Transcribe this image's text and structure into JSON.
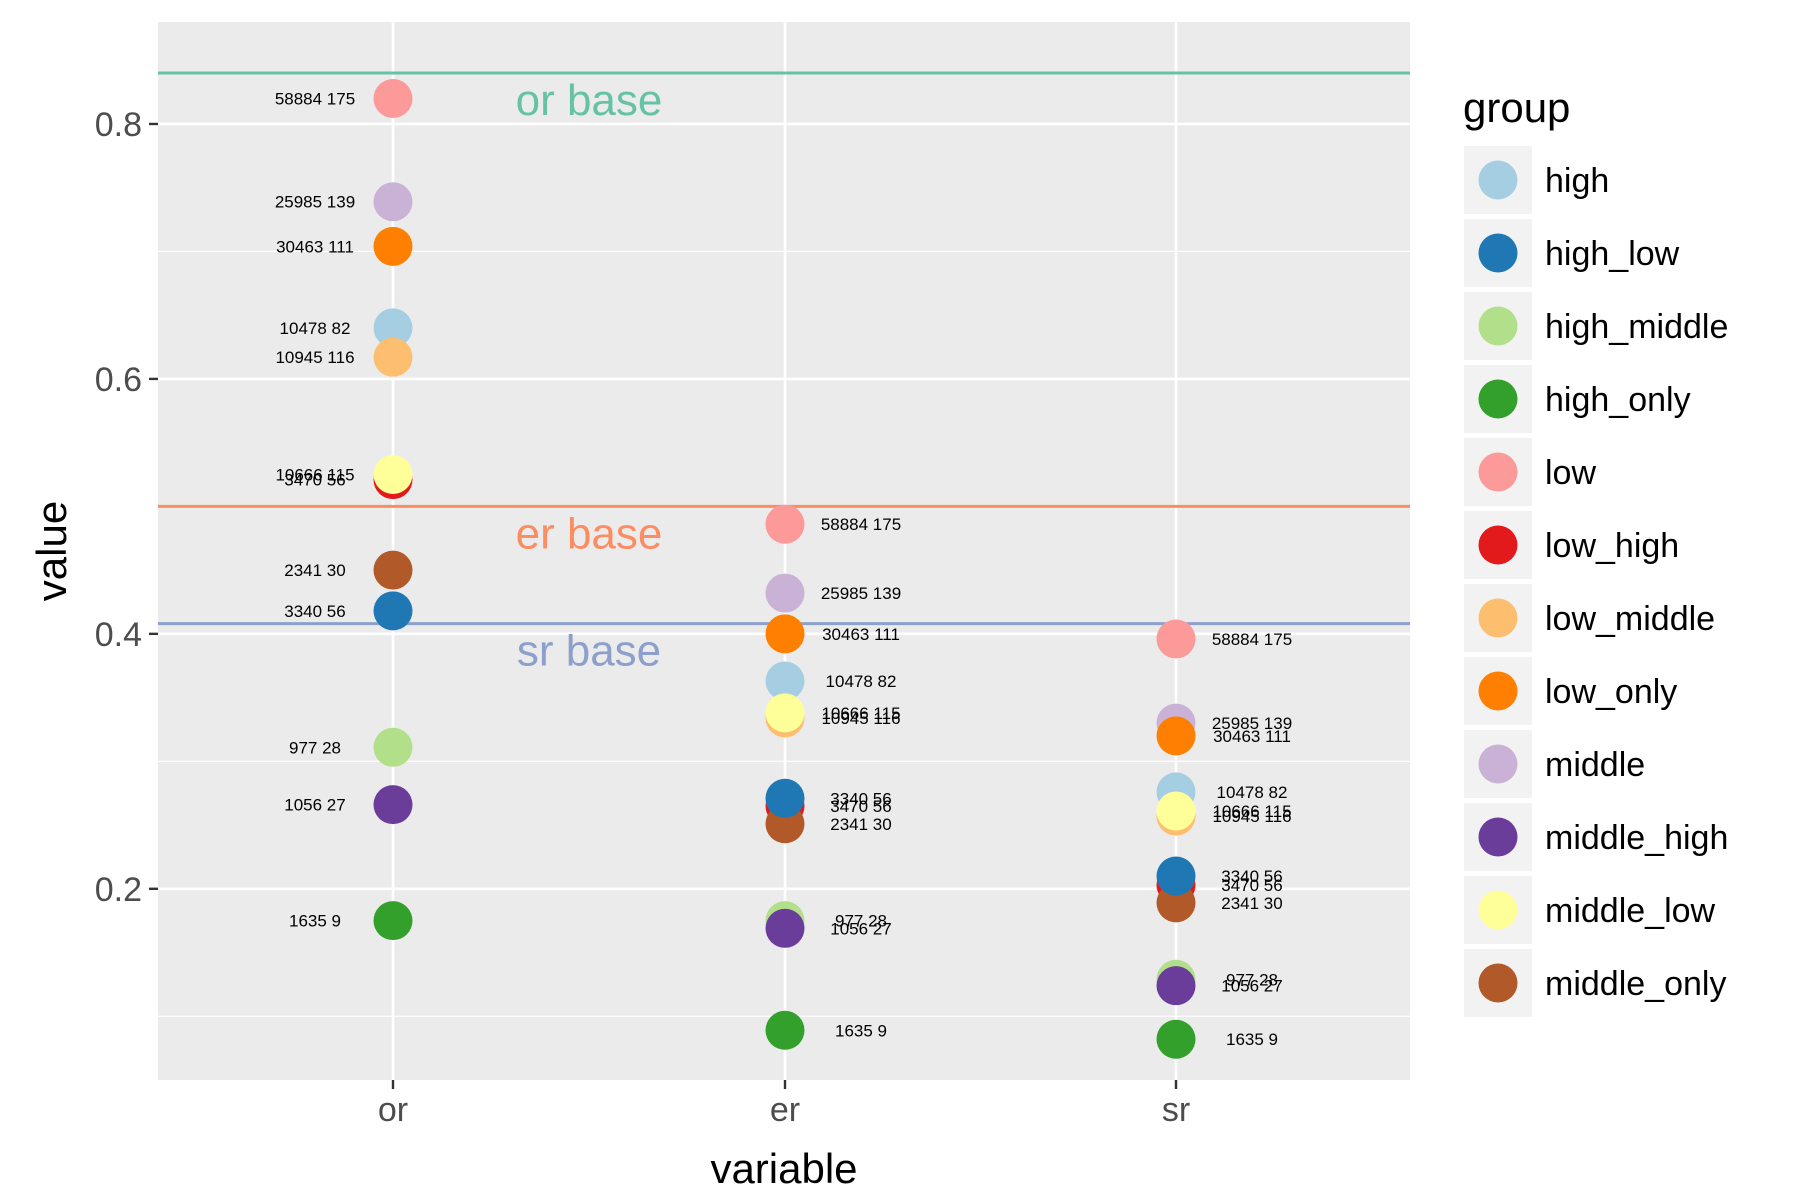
{
  "chart_data": {
    "type": "scatter",
    "xlabel": "variable",
    "ylabel": "value",
    "categories": [
      "or",
      "er",
      "sr"
    ],
    "ylim": [
      0.05,
      0.88
    ],
    "yticks": [
      0.2,
      0.4,
      0.6,
      0.8
    ],
    "ytick_labels": [
      "0.2",
      "0.4",
      "0.6",
      "0.8"
    ],
    "legend": {
      "title": "group",
      "position": "right",
      "entries": [
        {
          "name": "high",
          "color": "#A6CEE3"
        },
        {
          "name": "high_low",
          "color": "#1F78B4"
        },
        {
          "name": "high_middle",
          "color": "#B2DF8A"
        },
        {
          "name": "high_only",
          "color": "#33A02C"
        },
        {
          "name": "low",
          "color": "#FB9A99"
        },
        {
          "name": "low_high",
          "color": "#E31A1C"
        },
        {
          "name": "low_middle",
          "color": "#FDBF6F"
        },
        {
          "name": "low_only",
          "color": "#FF7F00"
        },
        {
          "name": "middle",
          "color": "#CAB2D6"
        },
        {
          "name": "middle_high",
          "color": "#6A3D9A"
        },
        {
          "name": "middle_low",
          "color": "#FFFF99"
        },
        {
          "name": "middle_only",
          "color": "#B15928"
        }
      ]
    },
    "baselines": [
      {
        "label": "or base",
        "value": 0.84,
        "color": "#66C2A5"
      },
      {
        "label": "er base",
        "value": 0.5,
        "color": "#FC8D62"
      },
      {
        "label": "sr base",
        "value": 0.408,
        "color": "#8DA0CB"
      }
    ],
    "series": [
      {
        "name": "low",
        "color": "#FB9A99",
        "label": "58884 175",
        "values": [
          0.82,
          0.486,
          0.396
        ]
      },
      {
        "name": "middle",
        "color": "#CAB2D6",
        "label": "25985 139",
        "values": [
          0.739,
          0.432,
          0.33
        ]
      },
      {
        "name": "low_only",
        "color": "#FF7F00",
        "label": "30463 111",
        "values": [
          0.704,
          0.4,
          0.32
        ]
      },
      {
        "name": "high",
        "color": "#A6CEE3",
        "label": "10478 82",
        "values": [
          0.64,
          0.363,
          0.276
        ]
      },
      {
        "name": "low_middle",
        "color": "#FDBF6F",
        "label": "10945 116",
        "values": [
          0.617,
          0.334,
          0.257
        ]
      },
      {
        "name": "low_high",
        "color": "#E31A1C",
        "label": "3470 56",
        "values": [
          0.521,
          0.265,
          0.203
        ]
      },
      {
        "name": "middle_low",
        "color": "#FFFF99",
        "label": "10666 115",
        "values": [
          0.525,
          0.338,
          0.261
        ]
      },
      {
        "name": "middle_only",
        "color": "#B15928",
        "label": "2341 30",
        "values": [
          0.45,
          0.251,
          0.189
        ]
      },
      {
        "name": "high_low",
        "color": "#1F78B4",
        "label": "3340 56",
        "values": [
          0.418,
          0.271,
          0.21
        ]
      },
      {
        "name": "high_middle",
        "color": "#B2DF8A",
        "label": "977 28",
        "values": [
          0.311,
          0.175,
          0.129
        ]
      },
      {
        "name": "middle_high",
        "color": "#6A3D9A",
        "label": "1056 27",
        "values": [
          0.266,
          0.169,
          0.124
        ]
      },
      {
        "name": "high_only",
        "color": "#33A02C",
        "label": "1635 9",
        "values": [
          0.175,
          0.089,
          0.082
        ]
      }
    ]
  }
}
